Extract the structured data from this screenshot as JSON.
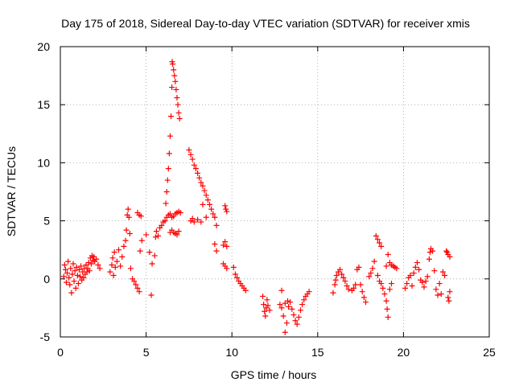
{
  "chart_data": {
    "type": "scatter",
    "title": "Day 175 of 2018, Sidereal Day-to-day VTEC variation (SDTVAR) for receiver xmis",
    "xlabel": "GPS time / hours",
    "ylabel": "SDTVAR / TECUs",
    "xlim": [
      0,
      25
    ],
    "ylim": [
      -5,
      20
    ],
    "xticks": [
      0,
      5,
      10,
      15,
      20,
      25
    ],
    "yticks": [
      -5,
      0,
      5,
      10,
      15,
      20
    ],
    "grid": true,
    "marker": "+",
    "color": "#ff0000",
    "series": [
      {
        "name": "SDTVAR",
        "points": [
          [
            0.2,
            0.2
          ],
          [
            0.25,
            1.2
          ],
          [
            0.3,
            0.8
          ],
          [
            0.35,
            -0.3
          ],
          [
            0.4,
            0.5
          ],
          [
            0.45,
            1.5
          ],
          [
            0.5,
            0.1
          ],
          [
            0.55,
            -0.5
          ],
          [
            0.6,
            0.9
          ],
          [
            0.65,
            -1.2
          ],
          [
            0.7,
            0.4
          ],
          [
            0.75,
            1.3
          ],
          [
            0.8,
            -0.2
          ],
          [
            0.85,
            0.7
          ],
          [
            0.9,
            -0.8
          ],
          [
            0.95,
            1.0
          ],
          [
            1.0,
            0.3
          ],
          [
            1.05,
            -0.4
          ],
          [
            1.1,
            0.8
          ],
          [
            1.15,
            0.2
          ],
          [
            1.2,
            1.1
          ],
          [
            1.25,
            -0.1
          ],
          [
            1.3,
            0.6
          ],
          [
            1.35,
            0.1
          ],
          [
            1.4,
            0.9
          ],
          [
            1.45,
            0.4
          ],
          [
            1.5,
            1.2
          ],
          [
            1.55,
            0.6
          ],
          [
            1.6,
            0.9
          ],
          [
            1.65,
            1.4
          ],
          [
            1.7,
            0.7
          ],
          [
            1.75,
            1.8
          ],
          [
            1.8,
            1.3
          ],
          [
            1.85,
            2.0
          ],
          [
            1.9,
            1.6
          ],
          [
            1.95,
            1.9
          ],
          [
            2.0,
            1.5
          ],
          [
            2.1,
            1.7
          ],
          [
            2.2,
            1.2
          ],
          [
            2.3,
            0.9
          ],
          [
            2.9,
            0.6
          ],
          [
            3.0,
            1.2
          ],
          [
            3.05,
            1.8
          ],
          [
            3.1,
            0.3
          ],
          [
            3.15,
            2.3
          ],
          [
            3.2,
            1.0
          ],
          [
            3.3,
            1.5
          ],
          [
            3.4,
            2.5
          ],
          [
            3.5,
            1.1
          ],
          [
            3.6,
            1.9
          ],
          [
            3.7,
            2.8
          ],
          [
            3.8,
            3.3
          ],
          [
            3.85,
            4.2
          ],
          [
            3.9,
            5.5
          ],
          [
            3.95,
            6.0
          ],
          [
            4.0,
            5.3
          ],
          [
            4.05,
            3.9
          ],
          [
            4.1,
            0.9
          ],
          [
            4.2,
            0.0
          ],
          [
            4.3,
            -0.2
          ],
          [
            4.4,
            -0.5
          ],
          [
            4.5,
            -0.8
          ],
          [
            4.6,
            -1.1
          ],
          [
            4.5,
            5.7
          ],
          [
            4.6,
            5.5
          ],
          [
            4.7,
            5.4
          ],
          [
            4.65,
            2.4
          ],
          [
            4.75,
            3.3
          ],
          [
            5.0,
            3.8
          ],
          [
            5.2,
            2.3
          ],
          [
            5.35,
            1.3
          ],
          [
            5.5,
            2.0
          ],
          [
            5.3,
            -1.4
          ],
          [
            5.55,
            3.6
          ],
          [
            5.6,
            4.1
          ],
          [
            5.7,
            3.7
          ],
          [
            5.8,
            4.4
          ],
          [
            5.9,
            4.6
          ],
          [
            6.0,
            4.9
          ],
          [
            6.1,
            5.0
          ],
          [
            6.2,
            5.3
          ],
          [
            6.3,
            5.5
          ],
          [
            6.4,
            5.6
          ],
          [
            6.5,
            5.3
          ],
          [
            6.6,
            5.4
          ],
          [
            6.7,
            5.6
          ],
          [
            6.8,
            5.7
          ],
          [
            6.9,
            5.8
          ],
          [
            7.0,
            5.7
          ],
          [
            6.4,
            4.0
          ],
          [
            6.5,
            4.2
          ],
          [
            6.6,
            4.0
          ],
          [
            6.7,
            3.9
          ],
          [
            6.8,
            3.8
          ],
          [
            6.9,
            4.1
          ],
          [
            6.15,
            6.5
          ],
          [
            6.2,
            7.5
          ],
          [
            6.25,
            8.5
          ],
          [
            6.3,
            9.5
          ],
          [
            6.35,
            10.8
          ],
          [
            6.4,
            12.3
          ],
          [
            6.45,
            14.0
          ],
          [
            6.5,
            16.5
          ],
          [
            6.52,
            18.7
          ],
          [
            6.55,
            18.5
          ],
          [
            6.6,
            18.0
          ],
          [
            6.65,
            17.5
          ],
          [
            6.7,
            17.0
          ],
          [
            6.75,
            16.3
          ],
          [
            6.8,
            15.6
          ],
          [
            6.85,
            15.0
          ],
          [
            6.9,
            14.3
          ],
          [
            6.95,
            13.8
          ],
          [
            7.5,
            11.1
          ],
          [
            7.6,
            10.7
          ],
          [
            7.7,
            10.3
          ],
          [
            7.8,
            9.8
          ],
          [
            7.9,
            9.5
          ],
          [
            8.0,
            9.1
          ],
          [
            8.1,
            8.7
          ],
          [
            8.2,
            8.3
          ],
          [
            8.3,
            8.0
          ],
          [
            8.4,
            7.6
          ],
          [
            8.5,
            7.2
          ],
          [
            8.6,
            6.8
          ],
          [
            8.7,
            6.4
          ],
          [
            8.8,
            6.0
          ],
          [
            8.9,
            5.6
          ],
          [
            9.0,
            5.3
          ],
          [
            7.6,
            5.0
          ],
          [
            7.7,
            5.2
          ],
          [
            7.8,
            4.9
          ],
          [
            8.0,
            5.1
          ],
          [
            8.3,
            6.4
          ],
          [
            8.5,
            5.3
          ],
          [
            8.2,
            4.9
          ],
          [
            9.1,
            4.6
          ],
          [
            9.0,
            3.0
          ],
          [
            9.1,
            2.4
          ],
          [
            9.5,
            2.9
          ],
          [
            9.6,
            3.2
          ],
          [
            9.7,
            2.8
          ],
          [
            9.6,
            6.3
          ],
          [
            9.65,
            6.0
          ],
          [
            9.7,
            5.8
          ],
          [
            9.5,
            1.3
          ],
          [
            9.6,
            1.1
          ],
          [
            9.7,
            0.9
          ],
          [
            10.1,
            1.0
          ],
          [
            10.2,
            0.4
          ],
          [
            10.3,
            0.1
          ],
          [
            10.4,
            -0.2
          ],
          [
            10.5,
            -0.4
          ],
          [
            10.6,
            -0.6
          ],
          [
            10.7,
            -0.8
          ],
          [
            10.8,
            -1.0
          ],
          [
            11.8,
            -1.5
          ],
          [
            11.85,
            -2.2
          ],
          [
            11.9,
            -2.8
          ],
          [
            11.95,
            -3.2
          ],
          [
            12.0,
            -2.5
          ],
          [
            12.05,
            -1.8
          ],
          [
            12.1,
            -2.3
          ],
          [
            12.2,
            -2.7
          ],
          [
            12.9,
            -1.0
          ],
          [
            12.8,
            -2.2
          ],
          [
            12.9,
            -2.5
          ],
          [
            13.0,
            -3.2
          ],
          [
            13.1,
            -4.6
          ],
          [
            13.2,
            -3.8
          ],
          [
            13.3,
            -2.4
          ],
          [
            13.4,
            -2.0
          ],
          [
            13.5,
            -2.6
          ],
          [
            13.6,
            -3.1
          ],
          [
            13.7,
            -3.6
          ],
          [
            13.8,
            -3.9
          ],
          [
            13.9,
            -3.3
          ],
          [
            14.0,
            -2.7
          ],
          [
            14.1,
            -2.2
          ],
          [
            14.2,
            -1.8
          ],
          [
            14.3,
            -1.5
          ],
          [
            14.4,
            -1.3
          ],
          [
            14.5,
            -1.1
          ],
          [
            13.1,
            -2.1
          ],
          [
            13.25,
            -1.9
          ],
          [
            15.9,
            -1.2
          ],
          [
            16.0,
            -0.5
          ],
          [
            16.05,
            -0.1
          ],
          [
            16.1,
            0.3
          ],
          [
            16.2,
            0.6
          ],
          [
            16.3,
            0.8
          ],
          [
            16.4,
            0.4
          ],
          [
            16.5,
            0.1
          ],
          [
            16.6,
            -0.2
          ],
          [
            16.7,
            -0.6
          ],
          [
            16.8,
            -0.9
          ],
          [
            17.0,
            -1.0
          ],
          [
            17.1,
            -0.8
          ],
          [
            17.2,
            -0.5
          ],
          [
            17.3,
            0.8
          ],
          [
            17.4,
            1.0
          ],
          [
            17.5,
            -0.5
          ],
          [
            17.6,
            -1.1
          ],
          [
            17.7,
            -1.6
          ],
          [
            17.8,
            -2.0
          ],
          [
            18.0,
            0.2
          ],
          [
            18.1,
            0.5
          ],
          [
            18.2,
            0.9
          ],
          [
            18.3,
            1.5
          ],
          [
            18.4,
            3.7
          ],
          [
            18.5,
            3.4
          ],
          [
            18.6,
            3.1
          ],
          [
            18.7,
            2.8
          ],
          [
            18.5,
            0.3
          ],
          [
            18.6,
            -0.2
          ],
          [
            18.7,
            -0.4
          ],
          [
            18.8,
            -0.8
          ],
          [
            18.9,
            -1.3
          ],
          [
            19.0,
            -1.9
          ],
          [
            19.05,
            -2.6
          ],
          [
            19.1,
            -3.3
          ],
          [
            19.0,
            1.1
          ],
          [
            19.1,
            2.1
          ],
          [
            19.2,
            1.4
          ],
          [
            19.3,
            1.2
          ],
          [
            19.4,
            1.1
          ],
          [
            19.5,
            1.0
          ],
          [
            19.6,
            0.9
          ],
          [
            19.3,
            -0.4
          ],
          [
            19.2,
            -0.9
          ],
          [
            20.1,
            -0.8
          ],
          [
            20.2,
            -0.4
          ],
          [
            20.3,
            0.1
          ],
          [
            20.4,
            0.3
          ],
          [
            20.5,
            -0.6
          ],
          [
            20.6,
            0.5
          ],
          [
            20.7,
            1.0
          ],
          [
            20.8,
            1.4
          ],
          [
            20.9,
            0.8
          ],
          [
            21.0,
            -0.1
          ],
          [
            21.1,
            -0.3
          ],
          [
            21.2,
            -0.7
          ],
          [
            21.3,
            -0.2
          ],
          [
            21.4,
            0.2
          ],
          [
            21.5,
            1.7
          ],
          [
            21.55,
            2.3
          ],
          [
            21.6,
            2.6
          ],
          [
            21.7,
            2.4
          ],
          [
            21.8,
            0.7
          ],
          [
            21.9,
            -0.9
          ],
          [
            22.0,
            -1.4
          ],
          [
            22.1,
            -0.4
          ],
          [
            22.2,
            -1.3
          ],
          [
            22.3,
            0.6
          ],
          [
            22.4,
            0.3
          ],
          [
            22.5,
            2.4
          ],
          [
            22.55,
            2.3
          ],
          [
            22.6,
            2.1
          ],
          [
            22.7,
            1.9
          ],
          [
            22.6,
            -1.6
          ],
          [
            22.7,
            -1.1
          ],
          [
            22.65,
            -1.9
          ]
        ]
      }
    ]
  }
}
